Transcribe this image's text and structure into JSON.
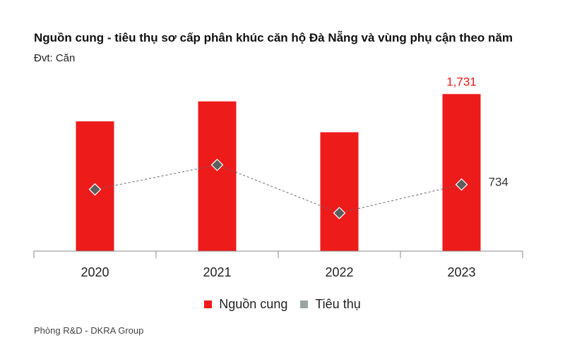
{
  "title": "Nguồn cung - tiêu thụ sơ cấp phân khúc căn hộ Đà Nẵng và vùng phụ cận theo năm",
  "subtitle": "Đvt: Căn",
  "source": "Phòng R&D - DKRA Group",
  "colors": {
    "supply": "#ee1b1b",
    "sales": "#9aa5a0",
    "marker": "#5e5e5e",
    "axis": "#8a8a8a",
    "label_red": "#e3191b"
  },
  "chart_data": {
    "type": "bar",
    "categories": [
      "2020",
      "2021",
      "2022",
      "2023"
    ],
    "series": [
      {
        "name": "Nguồn cung",
        "type": "bar",
        "values": [
          1430,
          1650,
          1310,
          1731
        ],
        "data_labels": [
          null,
          null,
          null,
          "1,731"
        ]
      },
      {
        "name": "Tiêu thụ",
        "type": "line",
        "marker": "diamond",
        "line_style": "dashed",
        "values": [
          680,
          950,
          420,
          734
        ],
        "data_labels": [
          null,
          null,
          null,
          "734"
        ]
      }
    ],
    "ylim": [
      0,
      1850
    ],
    "grid": false,
    "legend": "bottom-center"
  }
}
